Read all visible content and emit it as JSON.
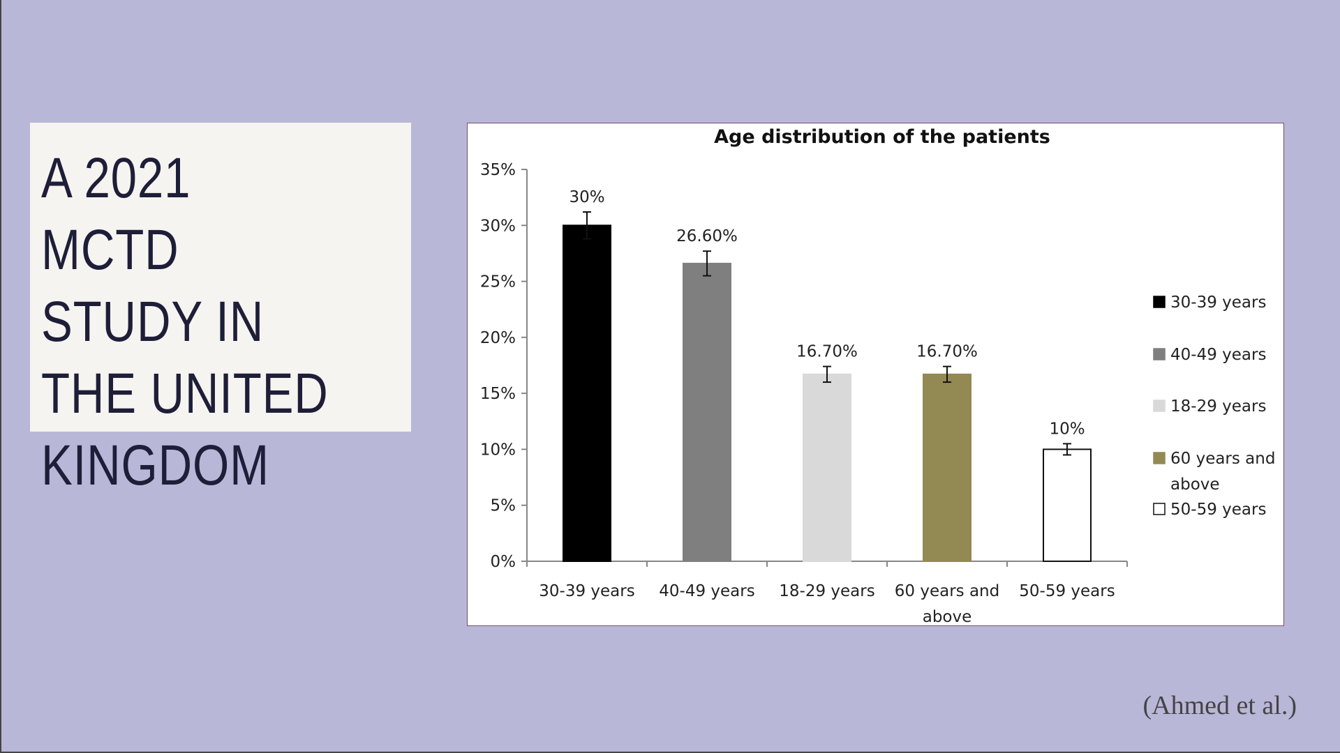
{
  "slide": {
    "title": "A 2021 MCTD\nSTUDY IN\nTHE UNITED\nKINGDOM",
    "citation": "(Ahmed et al.)"
  },
  "chart_data": {
    "type": "bar",
    "title": "Age distribution of the patients",
    "xlabel": "",
    "ylabel": "",
    "ylim": [
      0,
      0.35
    ],
    "yticks": [
      "0%",
      "5%",
      "10%",
      "15%",
      "20%",
      "25%",
      "30%",
      "35%"
    ],
    "ytick_values": [
      0,
      0.05,
      0.1,
      0.15,
      0.2,
      0.25,
      0.3,
      0.35
    ],
    "categories": [
      "30-39 years",
      "40-49 years",
      "18-29 years",
      "60 years and above",
      "50-59 years"
    ],
    "values": [
      0.3,
      0.266,
      0.167,
      0.167,
      0.1
    ],
    "data_labels": [
      "30%",
      "26.60%",
      "16.70%",
      "16.70%",
      "10%"
    ],
    "error_bars": [
      0.012,
      0.011,
      0.007,
      0.007,
      0.005
    ],
    "colors": [
      "#000000",
      "#7f7f7f",
      "#d9d9d9",
      "#938953",
      "#ffffff"
    ],
    "legend": {
      "position": "right",
      "entries": [
        "30-39 years",
        "40-49 years",
        "18-29 years",
        "60 years and above",
        "50-59 years"
      ]
    },
    "grid": false
  }
}
